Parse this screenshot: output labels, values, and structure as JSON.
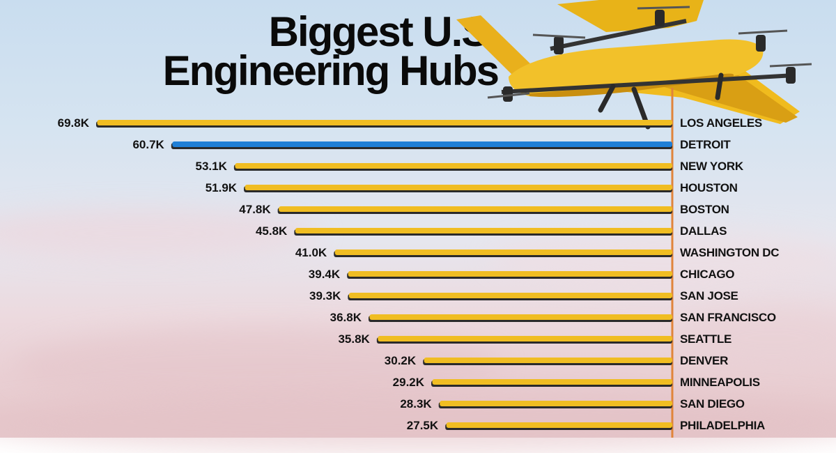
{
  "title_line1": "Biggest U.S.",
  "title_line2": "Engineering Hubs",
  "colors": {
    "bar_default": "#f0bd22",
    "bar_highlight": "#1f7fd6",
    "axis": "#e0843a",
    "text": "#111111"
  },
  "chart_data": {
    "type": "bar",
    "orientation": "horizontal",
    "title": "Biggest U.S. Engineering Hubs",
    "highlight": "DETROIT",
    "categories": [
      "LOS ANGELES",
      "DETROIT",
      "NEW YORK",
      "HOUSTON",
      "BOSTON",
      "DALLAS",
      "WASHINGTON DC",
      "CHICAGO",
      "SAN JOSE",
      "SAN FRANCISCO",
      "SEATTLE",
      "DENVER",
      "MINNEAPOLIS",
      "SAN DIEGO",
      "PHILADELPHIA"
    ],
    "labels": [
      "69.8K",
      "60.7K",
      "53.1K",
      "51.9K",
      "47.8K",
      "45.8K",
      "41.0K",
      "39.4K",
      "39.3K",
      "36.8K",
      "35.8K",
      "30.2K",
      "29.2K",
      "28.3K",
      "27.5K"
    ],
    "values": [
      69800,
      60700,
      53100,
      51900,
      47800,
      45800,
      41000,
      39400,
      39300,
      36800,
      35800,
      30200,
      29200,
      28300,
      27500
    ]
  }
}
